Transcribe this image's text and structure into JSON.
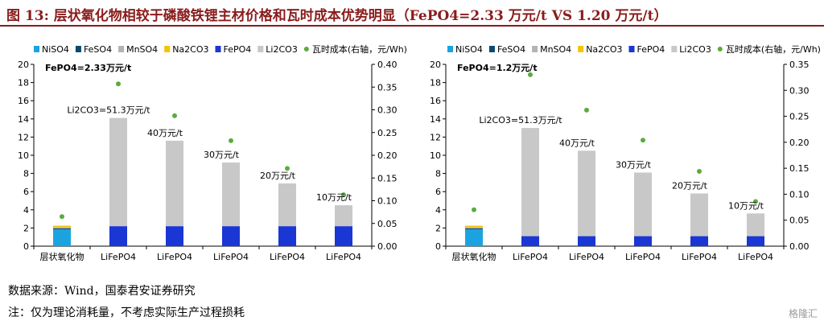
{
  "title": "图 13:  层状氧化物相较于磷酸铁锂主材价格和瓦时成本优势明显（FePO4=2.33 万元/t VS 1.20 万元/t）",
  "colors": {
    "NiSO4": "#1ba3e0",
    "FeSO4": "#0b4a6e",
    "MnSO4": "#b3b3b3",
    "Na2CO3": "#f5c400",
    "FePO4": "#1a36d4",
    "Li2CO3": "#c8c8c8",
    "dot": "#5aac3c"
  },
  "footer": {
    "source": "数据来源：Wind，国泰君安证券研究",
    "note": "注：仅为理论消耗量，不考虑实际生产过程损耗",
    "watermark": "格隆汇"
  },
  "chart_data": [
    {
      "type": "bar",
      "stacked": true,
      "subtitle": "FePO4=2.33万元/t",
      "categories": [
        "层状氧化物",
        "LiFePO4",
        "LiFePO4",
        "LiFePO4",
        "LiFePO4",
        "LiFePO4"
      ],
      "ylim": [
        0,
        20
      ],
      "y_ticks": [
        0,
        2,
        4,
        6,
        8,
        10,
        12,
        14,
        16,
        18,
        20
      ],
      "y2lim": [
        0,
        0.4
      ],
      "y2_ticks": [
        "0.00",
        "0.05",
        "0.10",
        "0.15",
        "0.20",
        "0.25",
        "0.30",
        "0.35",
        "0.40"
      ],
      "legend": [
        "NiSO4",
        "FeSO4",
        "MnSO4",
        "Na2CO3",
        "FePO4",
        "Li2CO3",
        "瓦时成本(右轴，元/Wh)"
      ],
      "series": [
        {
          "name": "NiSO4",
          "values": [
            1.85,
            0,
            0,
            0,
            0,
            0
          ]
        },
        {
          "name": "FeSO4",
          "values": [
            0.1,
            0,
            0,
            0,
            0,
            0
          ]
        },
        {
          "name": "MnSO4",
          "values": [
            0.15,
            0,
            0,
            0,
            0,
            0
          ]
        },
        {
          "name": "Na2CO3",
          "values": [
            0.15,
            0,
            0,
            0,
            0,
            0
          ]
        },
        {
          "name": "FePO4",
          "values": [
            0,
            2.2,
            2.2,
            2.2,
            2.2,
            2.2
          ]
        },
        {
          "name": "Li2CO3",
          "values": [
            0,
            11.9,
            9.4,
            7.0,
            4.7,
            2.3
          ]
        },
        {
          "name": "瓦时成本(右轴，元/Wh)",
          "axis": "right",
          "values": [
            0.065,
            0.357,
            0.287,
            0.232,
            0.171,
            0.113
          ]
        }
      ],
      "annotations": [
        "Li2CO3=51.3万元/t",
        "40万元/t",
        "30万元/t",
        "20万元/t",
        "10万元/t"
      ]
    },
    {
      "type": "bar",
      "stacked": true,
      "subtitle": "FePO4=1.2万元/t",
      "categories": [
        "层状氧化物",
        "LiFePO4",
        "LiFePO4",
        "LiFePO4",
        "LiFePO4",
        "LiFePO4"
      ],
      "ylim": [
        0,
        20
      ],
      "y_ticks": [
        0,
        2,
        4,
        6,
        8,
        10,
        12,
        14,
        16,
        18,
        20
      ],
      "y2lim": [
        0,
        0.35
      ],
      "y2_ticks": [
        "0.00",
        "0.05",
        "0.10",
        "0.15",
        "0.20",
        "0.25",
        "0.30",
        "0.35"
      ],
      "legend": [
        "NiSO4",
        "FeSO4",
        "MnSO4",
        "Na2CO3",
        "FePO4",
        "Li2CO3",
        "瓦时成本(右轴，元/Wh)"
      ],
      "series": [
        {
          "name": "NiSO4",
          "values": [
            1.85,
            0,
            0,
            0,
            0,
            0
          ]
        },
        {
          "name": "FeSO4",
          "values": [
            0.1,
            0,
            0,
            0,
            0,
            0
          ]
        },
        {
          "name": "MnSO4",
          "values": [
            0.15,
            0,
            0,
            0,
            0,
            0
          ]
        },
        {
          "name": "Na2CO3",
          "values": [
            0.15,
            0,
            0,
            0,
            0,
            0
          ]
        },
        {
          "name": "FePO4",
          "values": [
            0,
            1.1,
            1.1,
            1.1,
            1.1,
            1.1
          ]
        },
        {
          "name": "Li2CO3",
          "values": [
            0,
            11.9,
            9.4,
            7.0,
            4.7,
            2.5
          ]
        },
        {
          "name": "瓦时成本(右轴，元/Wh)",
          "axis": "right",
          "values": [
            0.07,
            0.33,
            0.262,
            0.204,
            0.144,
            0.086
          ]
        }
      ],
      "annotations": [
        "Li2CO3=51.3万元/t",
        "40万元/t",
        "30万元/t",
        "20万元/t",
        "10万元/t"
      ]
    }
  ]
}
